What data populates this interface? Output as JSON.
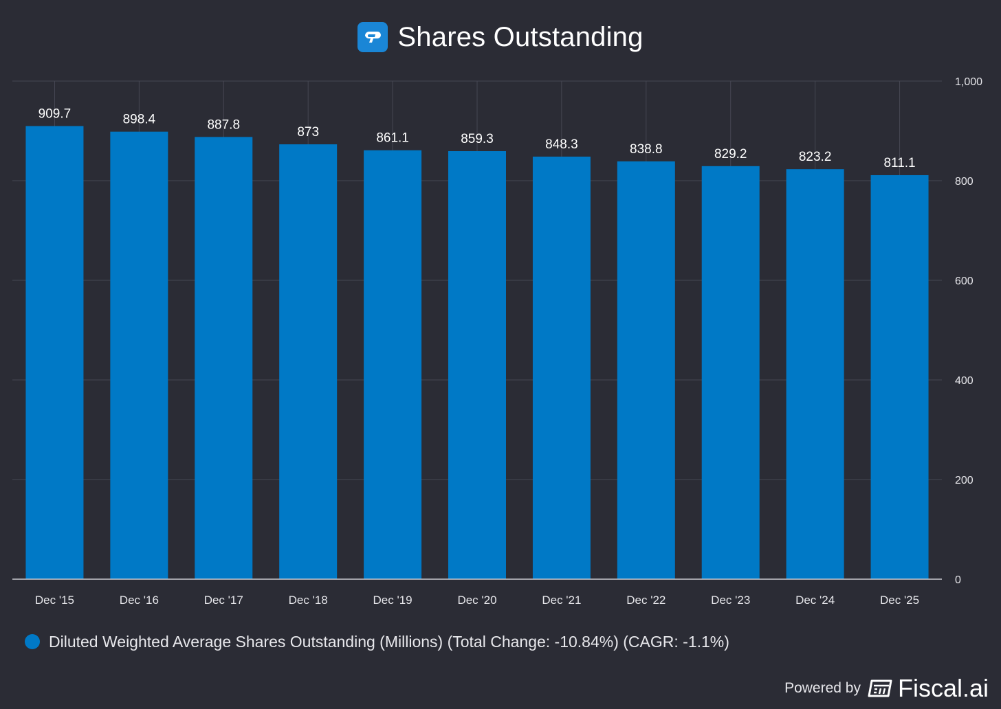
{
  "header": {
    "title": "Shares Outstanding",
    "logo_icon": "company-logo-icon"
  },
  "chart_data": {
    "type": "bar",
    "categories": [
      "Dec '15",
      "Dec '16",
      "Dec '17",
      "Dec '18",
      "Dec '19",
      "Dec '20",
      "Dec '21",
      "Dec '22",
      "Dec '23",
      "Dec '24",
      "Dec '25"
    ],
    "series": [
      {
        "name": "Diluted Weighted Average Shares Outstanding (Millions) (Total Change: -10.84%) (CAGR: -1.1%)",
        "values": [
          909.7,
          898.4,
          887.8,
          873,
          861.1,
          859.3,
          848.3,
          838.8,
          829.2,
          823.2,
          811.1
        ],
        "color": "#0079c6"
      }
    ],
    "data_labels": [
      "909.7",
      "898.4",
      "887.8",
      "873",
      "861.1",
      "859.3",
      "848.3",
      "838.8",
      "829.2",
      "823.2",
      "811.1"
    ],
    "y_ticks": [
      "0",
      "200",
      "400",
      "600",
      "800",
      "1,000"
    ],
    "ylim": [
      0,
      1000
    ],
    "y_axis_side": "right",
    "grid": true,
    "legend_position": "bottom-left"
  },
  "legend": {
    "label": "Diluted Weighted Average Shares Outstanding (Millions) (Total Change: -10.84%) (CAGR: -1.1%)",
    "color": "#0079c6"
  },
  "footer": {
    "powered_label": "Powered by",
    "brand": "Fiscal.ai",
    "brand_icon": "fiscal-ai-logo-icon"
  }
}
